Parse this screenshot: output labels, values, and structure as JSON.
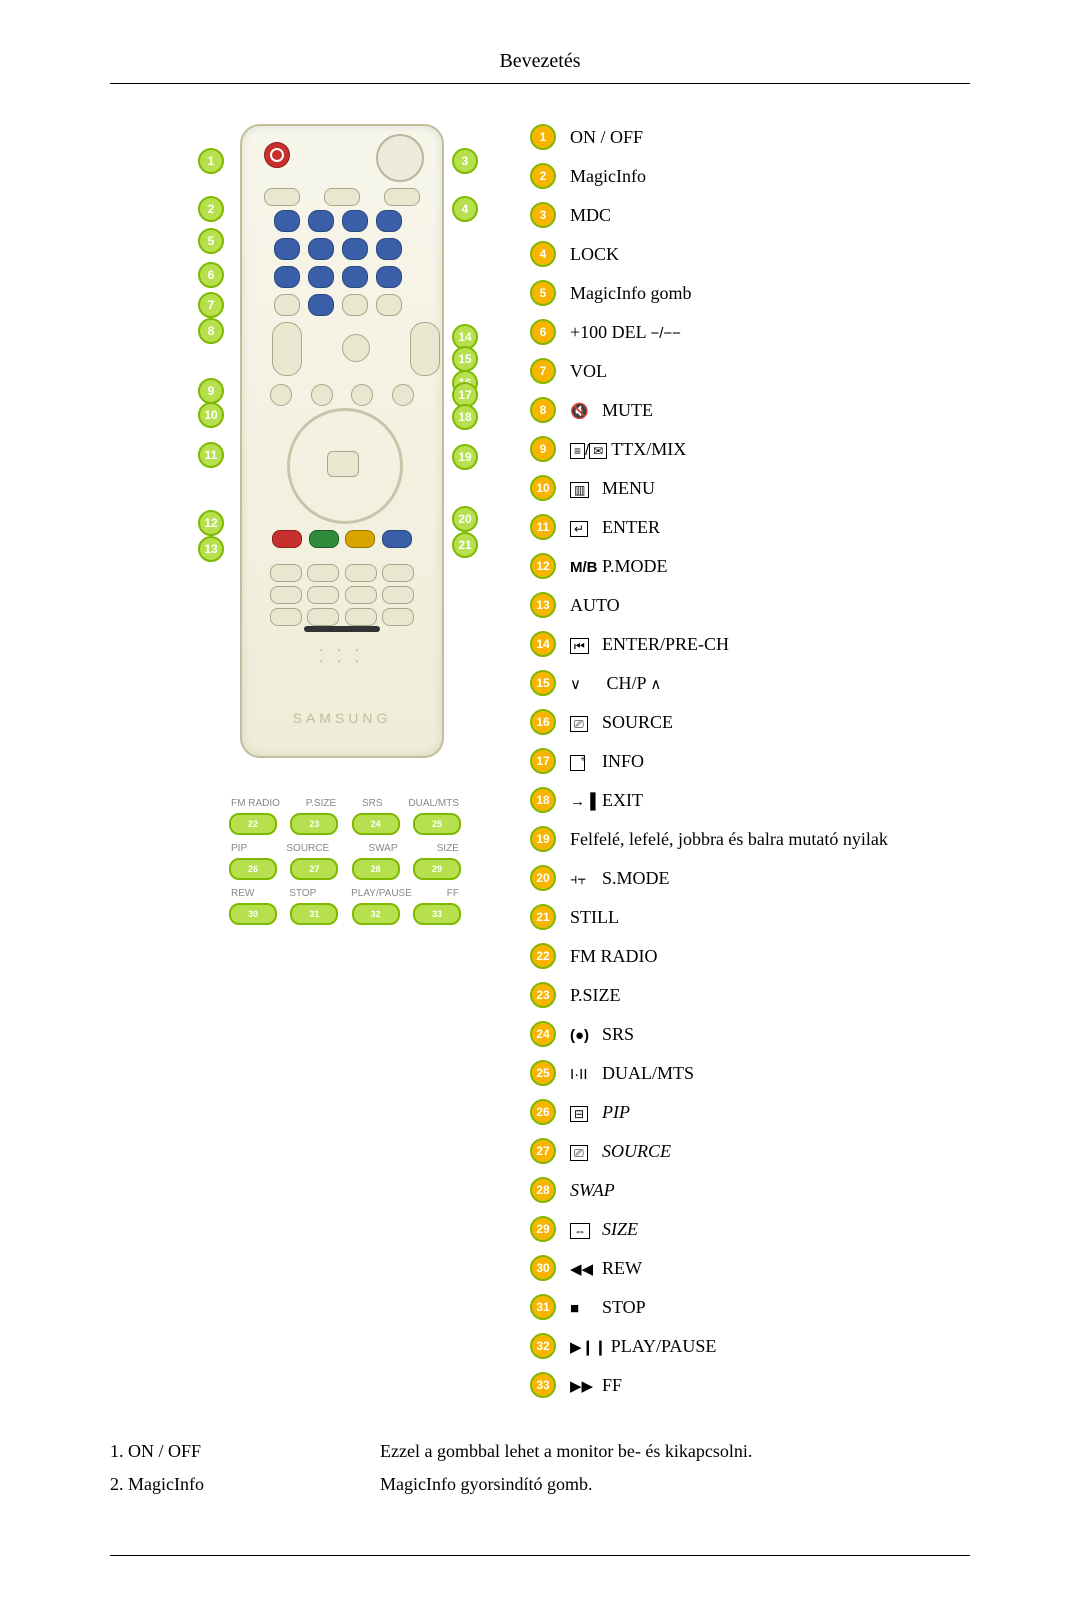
{
  "page": {
    "header": "Bevezetés",
    "brand": "SAMSUNG"
  },
  "legend": [
    {
      "n": "1",
      "label": "ON / OFF",
      "icon": ""
    },
    {
      "n": "2",
      "label": "MagicInfo",
      "icon": ""
    },
    {
      "n": "3",
      "label": "MDC",
      "icon": ""
    },
    {
      "n": "4",
      "label": "LOCK",
      "icon": ""
    },
    {
      "n": "5",
      "label": "MagicInfo gomb",
      "icon": ""
    },
    {
      "n": "6",
      "label": "+100 DEL",
      "icon": "minus"
    },
    {
      "n": "7",
      "label": "VOL",
      "icon": ""
    },
    {
      "n": "8",
      "label": "MUTE",
      "icon": "mute"
    },
    {
      "n": "9",
      "label": "TTX/MIX",
      "icon": "ttx"
    },
    {
      "n": "10",
      "label": "MENU",
      "icon": "menu"
    },
    {
      "n": "11",
      "label": "ENTER",
      "icon": "enter"
    },
    {
      "n": "12",
      "label": "P.MODE",
      "icon": "mb"
    },
    {
      "n": "13",
      "label": "AUTO",
      "icon": ""
    },
    {
      "n": "14",
      "label": "ENTER/PRE-CH",
      "icon": "prech"
    },
    {
      "n": "15",
      "label": "CH/P",
      "icon": "chp"
    },
    {
      "n": "16",
      "label": "SOURCE",
      "icon": "source"
    },
    {
      "n": "17",
      "label": "INFO",
      "icon": "info"
    },
    {
      "n": "18",
      "label": "EXIT",
      "icon": "exit"
    },
    {
      "n": "19",
      "label": "Felfelé, lefelé, jobbra és balra mutató nyilak",
      "icon": ""
    },
    {
      "n": "20",
      "label": "S.MODE",
      "icon": "smode"
    },
    {
      "n": "21",
      "label": "STILL",
      "icon": ""
    },
    {
      "n": "22",
      "label": "FM RADIO",
      "icon": ""
    },
    {
      "n": "23",
      "label": "P.SIZE",
      "icon": ""
    },
    {
      "n": "24",
      "label": "SRS",
      "icon": "srs"
    },
    {
      "n": "25",
      "label": "DUAL/MTS",
      "icon": "dual"
    },
    {
      "n": "26",
      "label": "PIP",
      "icon": "pip",
      "italic": true
    },
    {
      "n": "27",
      "label": "SOURCE",
      "icon": "source2",
      "italic": true
    },
    {
      "n": "28",
      "label": "SWAP",
      "icon": "",
      "italic": true
    },
    {
      "n": "29",
      "label": "SIZE",
      "icon": "size",
      "italic": true
    },
    {
      "n": "30",
      "label": "REW",
      "icon": "rew"
    },
    {
      "n": "31",
      "label": "STOP",
      "icon": "stop"
    },
    {
      "n": "32",
      "label": "PLAY/PAUSE",
      "icon": "play"
    },
    {
      "n": "33",
      "label": "FF",
      "icon": "ff"
    }
  ],
  "inset_rows": [
    [
      "FM RADIO",
      "P.SIZE",
      "SRS",
      "DUAL/MTS"
    ],
    [
      "PIP",
      "SOURCE",
      "SWAP",
      "SIZE"
    ],
    [
      "REW",
      "STOP",
      "PLAY/PAUSE",
      "FF"
    ]
  ],
  "inset_bubbles": {
    "row1": [
      "22",
      "23",
      "24",
      "25"
    ],
    "row2": [
      "26",
      "27",
      "28",
      "29"
    ],
    "row3": [
      "30",
      "31",
      "32",
      "33"
    ]
  },
  "desc": [
    {
      "left": "1. ON / OFF",
      "right": "Ezzel a gombbal lehet a monitor be- és kikapcsolni."
    },
    {
      "left": "2. MagicInfo",
      "right": "MagicInfo gyorsindító gomb."
    }
  ],
  "colors": {
    "bubble_border": "#7fb800",
    "bubble_fill_green": "#b6e04e",
    "bubble_fill_orange": "#f7b500",
    "remote_body": "#efedd8",
    "remote_border": "#c0be9b",
    "red": "#c8302e"
  },
  "side_bubbles_left": [
    "1",
    "2",
    "5",
    "6",
    "7",
    "8",
    "9",
    "10",
    "11",
    "12",
    "13"
  ],
  "side_bubbles_right": [
    "3",
    "4",
    "14",
    "15",
    "16",
    "17",
    "18",
    "19",
    "20",
    "21"
  ]
}
